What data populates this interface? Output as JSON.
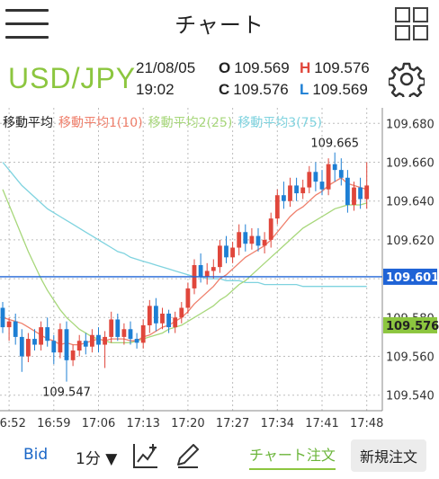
{
  "header": {
    "title": "チャート"
  },
  "quote": {
    "pair": "USD/JPY",
    "date": "21/08/05",
    "time": "19:02",
    "o_label": "O",
    "o": "109.569",
    "h_label": "H",
    "h": "109.576",
    "c_label": "C",
    "c": "109.576",
    "l_label": "L",
    "l": "109.569"
  },
  "legend": {
    "main": "移動平均",
    "ma1": "移動平均1(10)",
    "ma2": "移動平均2(25)",
    "ma3": "移動平均3(75)"
  },
  "colors": {
    "up": "#e0463b",
    "down": "#1d7fd4",
    "ma1": "#ef7f6b",
    "ma2": "#a7d77a",
    "ma3": "#7fd3df",
    "price_line": "#1f63d6",
    "last_price": "#8cc63f",
    "pair": "#8cc63f"
  },
  "chart_data": {
    "type": "candlestick",
    "y_ticks": [
      "109.680",
      "109.660",
      "109.640",
      "109.620",
      "109.600",
      "109.580",
      "109.560",
      "109.540"
    ],
    "ylim": [
      109.532,
      109.688
    ],
    "x_ticks": [
      "16:52",
      "16:59",
      "17:06",
      "17:13",
      "17:20",
      "17:27",
      "17:34",
      "17:41",
      "17:48"
    ],
    "x_tick_index": [
      1,
      8,
      15,
      22,
      29,
      36,
      43,
      50,
      57
    ],
    "current_price": "109.601",
    "last_close": "109.576",
    "max_label": "109.665",
    "min_label": "109.547",
    "max_index": 52,
    "min_index": 10,
    "candles": [
      [
        109.585,
        109.588,
        109.572,
        109.575
      ],
      [
        109.575,
        109.58,
        109.568,
        109.578
      ],
      [
        109.578,
        109.582,
        109.566,
        109.57
      ],
      [
        109.57,
        109.574,
        109.552,
        109.56
      ],
      [
        109.56,
        109.572,
        109.557,
        109.569
      ],
      [
        109.569,
        109.574,
        109.563,
        109.566
      ],
      [
        109.566,
        109.578,
        109.563,
        109.575
      ],
      [
        109.575,
        109.58,
        109.565,
        109.568
      ],
      [
        109.568,
        109.571,
        109.556,
        109.562
      ],
      [
        109.562,
        109.577,
        109.559,
        109.574
      ],
      [
        109.574,
        109.578,
        109.547,
        109.558
      ],
      [
        109.558,
        109.566,
        109.555,
        109.563
      ],
      [
        109.563,
        109.571,
        109.56,
        109.568
      ],
      [
        109.568,
        109.572,
        109.561,
        109.565
      ],
      [
        109.565,
        109.574,
        109.562,
        109.571
      ],
      [
        109.571,
        109.575,
        109.562,
        109.566
      ],
      [
        109.566,
        109.573,
        109.554,
        109.57
      ],
      [
        109.57,
        109.583,
        109.567,
        109.579
      ],
      [
        109.579,
        109.582,
        109.568,
        109.57
      ],
      [
        109.57,
        109.577,
        109.566,
        109.574
      ],
      [
        109.574,
        109.578,
        109.566,
        109.569
      ],
      [
        109.569,
        109.572,
        109.564,
        109.567
      ],
      [
        109.567,
        109.579,
        109.564,
        109.576
      ],
      [
        109.576,
        109.589,
        109.572,
        109.586
      ],
      [
        109.586,
        109.59,
        109.573,
        109.577
      ],
      [
        109.577,
        109.585,
        109.574,
        109.582
      ],
      [
        109.582,
        109.584,
        109.572,
        109.575
      ],
      [
        109.575,
        109.583,
        109.572,
        109.58
      ],
      [
        109.58,
        109.588,
        109.577,
        109.585
      ],
      [
        109.585,
        109.598,
        109.582,
        109.595
      ],
      [
        109.595,
        109.61,
        109.592,
        109.607
      ],
      [
        109.607,
        109.613,
        109.598,
        109.601
      ],
      [
        109.601,
        109.608,
        109.597,
        109.604
      ],
      [
        109.604,
        109.61,
        109.6,
        109.606
      ],
      [
        109.606,
        109.62,
        109.603,
        109.617
      ],
      [
        109.617,
        109.622,
        109.608,
        109.611
      ],
      [
        109.611,
        109.619,
        109.608,
        109.616
      ],
      [
        109.616,
        109.628,
        109.612,
        109.624
      ],
      [
        109.624,
        109.628,
        109.614,
        109.618
      ],
      [
        109.618,
        109.626,
        109.615,
        109.622
      ],
      [
        109.622,
        109.626,
        109.614,
        109.617
      ],
      [
        109.617,
        109.624,
        109.613,
        109.62
      ],
      [
        109.62,
        109.634,
        109.616,
        109.631
      ],
      [
        109.631,
        109.646,
        109.628,
        109.643
      ],
      [
        109.643,
        109.65,
        109.636,
        109.64
      ],
      [
        109.64,
        109.652,
        109.637,
        109.648
      ],
      [
        109.648,
        109.652,
        109.64,
        109.644
      ],
      [
        109.644,
        109.651,
        109.641,
        109.647
      ],
      [
        109.647,
        109.658,
        109.644,
        109.655
      ],
      [
        109.655,
        109.66,
        109.645,
        109.65
      ],
      [
        109.65,
        109.656,
        109.643,
        109.646
      ],
      [
        109.646,
        109.662,
        109.643,
        109.659
      ],
      [
        109.659,
        109.665,
        109.65,
        109.656
      ],
      [
        109.656,
        109.662,
        109.648,
        109.652
      ],
      [
        109.652,
        109.656,
        109.634,
        109.638
      ],
      [
        109.638,
        109.65,
        109.635,
        109.647
      ],
      [
        109.647,
        109.652,
        109.636,
        109.641
      ],
      [
        109.641,
        109.66,
        109.636,
        109.648
      ]
    ],
    "ma_line": [
      109.58,
      109.579,
      109.578,
      109.577,
      109.575,
      109.573,
      109.571,
      109.569,
      109.568,
      109.566,
      109.567,
      109.566,
      109.566,
      109.567,
      109.568,
      109.569,
      109.568,
      109.569,
      109.569,
      109.569,
      109.568,
      109.568,
      109.57,
      109.571,
      109.573,
      109.575,
      109.576,
      109.578,
      109.58,
      109.583,
      109.587,
      109.59,
      109.593,
      109.596,
      109.6,
      109.602,
      109.605,
      109.608,
      109.611,
      109.613,
      109.615,
      109.617,
      109.62,
      109.624,
      109.628,
      109.632,
      109.635,
      109.637,
      109.64,
      109.643,
      109.645,
      109.648,
      109.65,
      109.652,
      109.649,
      109.648,
      109.647,
      109.646
    ],
    "ma2_line": [
      109.646,
      109.638,
      109.63,
      109.622,
      109.614,
      109.607,
      109.6,
      109.594,
      109.589,
      109.584,
      109.58,
      109.577,
      109.574,
      109.572,
      109.57,
      109.569,
      109.568,
      109.567,
      109.567,
      109.567,
      109.567,
      109.568,
      109.569,
      109.57,
      109.571,
      109.572,
      109.574,
      109.575,
      109.576,
      109.578,
      109.58,
      109.582,
      109.584,
      109.586,
      109.589,
      109.591,
      109.594,
      109.597,
      109.599,
      109.602,
      109.605,
      109.608,
      109.611,
      109.614,
      109.617,
      109.62,
      109.623,
      109.626,
      109.628,
      109.63,
      109.632,
      109.634,
      109.636,
      109.637,
      109.638,
      109.638,
      109.638,
      109.639
    ],
    "ma3_line": [
      109.66,
      109.656,
      109.652,
      109.648,
      109.645,
      109.642,
      109.639,
      109.636,
      109.634,
      109.632,
      109.63,
      109.628,
      109.626,
      109.624,
      109.622,
      109.62,
      109.618,
      109.616,
      109.614,
      109.613,
      109.611,
      109.61,
      109.609,
      109.608,
      109.607,
      109.606,
      109.605,
      109.604,
      109.603,
      109.602,
      109.601,
      109.601,
      109.6,
      109.6,
      109.6,
      109.599,
      109.599,
      109.599,
      109.598,
      109.598,
      109.598,
      109.597,
      109.597,
      109.597,
      109.597,
      109.597,
      109.597,
      109.596,
      109.596,
      109.596,
      109.596,
      109.596,
      109.596,
      109.596,
      109.596,
      109.596,
      109.596,
      109.596
    ]
  },
  "bottom": {
    "bid": "Bid",
    "period": "1分 ▼",
    "chart_order": "チャート注文",
    "new_order": "新規注文"
  }
}
